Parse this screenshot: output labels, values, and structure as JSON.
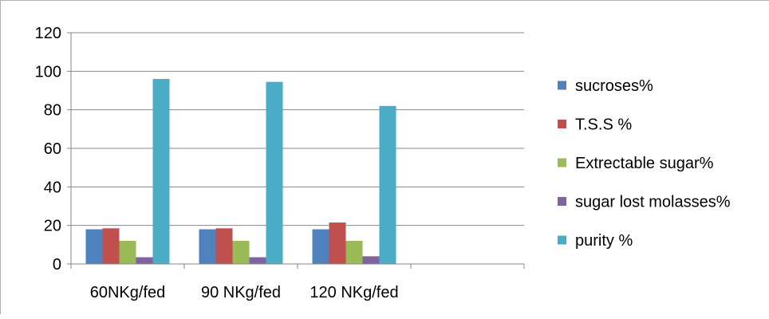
{
  "chart_data": {
    "type": "bar",
    "categories": [
      "60NKg/fed",
      "90 NKg/fed",
      "120 NKg/fed"
    ],
    "series": [
      {
        "name": "sucroses%",
        "values": [
          18,
          18,
          18
        ],
        "color": "#4f81bd"
      },
      {
        "name": "T.S.S %",
        "values": [
          18.5,
          18.5,
          21.5
        ],
        "color": "#c0504d"
      },
      {
        "name": "Extrectable sugar%",
        "values": [
          12,
          12,
          12
        ],
        "color": "#9bbb59"
      },
      {
        "name": "sugar lost molasses%",
        "values": [
          3.5,
          3.5,
          4
        ],
        "color": "#8064a2"
      },
      {
        "name": "purity %",
        "values": [
          96,
          94.5,
          82
        ],
        "color": "#4bacc6"
      }
    ],
    "ylim": [
      0,
      120
    ],
    "yticks": [
      0,
      20,
      40,
      60,
      80,
      100,
      120
    ],
    "ytick_labels": [
      "0",
      "20",
      "40",
      "60",
      "80",
      "100",
      "120"
    ],
    "grid": true,
    "legend": "right",
    "slots": 4,
    "title": "",
    "xlabel": "",
    "ylabel": ""
  }
}
